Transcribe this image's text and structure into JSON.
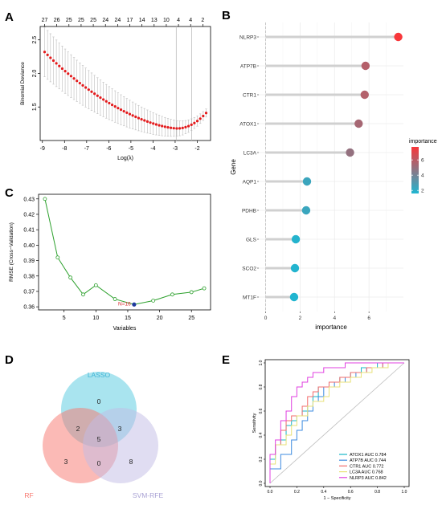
{
  "panels": {
    "A": "A",
    "B": "B",
    "C": "C",
    "D": "D",
    "E": "E"
  },
  "chart_data": [
    {
      "panel": "A",
      "type": "scatter",
      "xlabel": "Log(λ)",
      "ylabel": "Binomial Deviance",
      "xlim": [
        -9.1,
        -1.4
      ],
      "ylim": [
        1.0,
        2.7
      ],
      "xticks": [
        -9,
        -8,
        -7,
        -6,
        -5,
        -4,
        -3,
        -2
      ],
      "yticks": [
        1.5,
        2.0,
        2.5
      ],
      "ytick_labels": [
        "1.5",
        "2.0",
        "2.5"
      ],
      "top_axis_labels": [
        "27",
        "26",
        "25",
        "25",
        "25",
        "24",
        "24",
        "17",
        "14",
        "13",
        "10",
        "4",
        "4",
        "2"
      ],
      "top_axis_positions": [
        -8.9,
        -8.35,
        -7.8,
        -7.25,
        -6.7,
        -6.15,
        -5.6,
        -5.05,
        -4.5,
        -3.95,
        -3.4,
        -2.85,
        -2.3,
        -1.75
      ],
      "vlines": [
        -2.95,
        -2.25
      ],
      "curve": {
        "x_start": -8.9,
        "x_end": -1.6,
        "n": 56,
        "deviance_start": 2.32,
        "deviance_min": 1.18,
        "min_at": -2.9,
        "deviance_end": 1.41,
        "error_start": 0.37,
        "error_end": 0.06
      },
      "colors": {
        "point": "#e31a1c",
        "errorbar": "#bdbdbd",
        "vline": "#bdbdbd"
      }
    },
    {
      "panel": "B",
      "type": "scatter",
      "xlabel": "importance",
      "ylabel": "Gene",
      "xlim": [
        -0.4,
        8.0
      ],
      "xticks": [
        0,
        2,
        4,
        6
      ],
      "genes": [
        "NLRP3",
        "ATP7B",
        "CTR1",
        "ATOX1",
        "LC3A",
        "AQP1",
        "PDHB",
        "GLS",
        "SCO2",
        "MT1F"
      ],
      "importance": [
        7.7,
        5.8,
        5.75,
        5.4,
        4.9,
        2.4,
        2.35,
        1.75,
        1.7,
        1.65
      ],
      "legend": {
        "title": "importance",
        "ticks": [
          2,
          4,
          6
        ],
        "range": [
          1.6,
          7.7
        ],
        "color_low": "#1fb6d1",
        "color_high": "#f8373a"
      },
      "colors": {
        "stem": "#d0d0d0",
        "panel_bg": "#ffffff",
        "grid": "#ebebeb"
      }
    },
    {
      "panel": "C",
      "type": "line",
      "xlabel": "Variables",
      "ylabel": "RMSE (Cross−Validation)",
      "xlim": [
        1,
        28
      ],
      "ylim": [
        0.358,
        0.433
      ],
      "xticks": [
        5,
        10,
        15,
        20,
        25
      ],
      "yticks": [
        0.36,
        0.37,
        0.38,
        0.39,
        0.4,
        0.41,
        0.42,
        0.43
      ],
      "ytick_labels": [
        "0.36",
        "0.37",
        "0.38",
        "0.39",
        "0.40",
        "0.41",
        "0.42",
        "0.43"
      ],
      "x": [
        2,
        4,
        6,
        8,
        10,
        13,
        16,
        19,
        22,
        25,
        27
      ],
      "y": [
        0.43,
        0.392,
        0.379,
        0.368,
        0.374,
        0.365,
        0.3615,
        0.364,
        0.368,
        0.3695,
        0.372
      ],
      "best": {
        "x": 16,
        "y": 0.3615,
        "label": "N=16"
      },
      "colors": {
        "line": "#2ca02c",
        "point": "#2ca02c",
        "best": "#1f3a9e",
        "label": "#d62728"
      }
    },
    {
      "panel": "D",
      "type": "table",
      "kind": "venn",
      "sets": [
        {
          "name": "LASSO",
          "color": "#53c9e0",
          "label_color": "#3fb4d6"
        },
        {
          "name": "RF",
          "color": "#f8766d",
          "label_color": "#f8766d"
        },
        {
          "name": "SVM-RFE",
          "color": "#c2bce6",
          "label_color": "#a9a2d4"
        }
      ],
      "regions": {
        "lasso_only": "0",
        "rf_only": "3",
        "svm_only": "8",
        "lasso_rf": "2",
        "lasso_svm": "3",
        "rf_svm": "0",
        "all": "5"
      }
    },
    {
      "panel": "E",
      "type": "line",
      "xlabel": "1 − Specificity",
      "ylabel": "Sensitivity",
      "xlim": [
        0,
        1
      ],
      "ylim": [
        0,
        1
      ],
      "ticks": [
        0.0,
        0.2,
        0.4,
        0.6,
        0.8,
        1.0
      ],
      "tick_labels": [
        "0.0",
        "0.2",
        "0.4",
        "0.6",
        "0.8",
        "1.0"
      ],
      "series": [
        {
          "name": "ATOX1 AUC 0.784",
          "color": "#17b6c8",
          "x": [
            0,
            0,
            0.04,
            0.04,
            0.08,
            0.08,
            0.12,
            0.12,
            0.16,
            0.16,
            0.2,
            0.2,
            0.24,
            0.24,
            0.28,
            0.28,
            0.32,
            0.32,
            0.36,
            0.36,
            0.44,
            0.44,
            0.52,
            0.52,
            0.6,
            0.6,
            0.68,
            0.68,
            0.8,
            0.8,
            1.0
          ],
          "y": [
            0,
            0.2,
            0.2,
            0.32,
            0.32,
            0.36,
            0.36,
            0.48,
            0.48,
            0.52,
            0.52,
            0.56,
            0.56,
            0.6,
            0.6,
            0.64,
            0.64,
            0.72,
            0.72,
            0.8,
            0.8,
            0.84,
            0.84,
            0.88,
            0.88,
            0.92,
            0.92,
            0.96,
            0.96,
            1.0,
            1.0
          ]
        },
        {
          "name": "ATP7B AUC 0.744",
          "color": "#3d8be0",
          "x": [
            0,
            0,
            0.08,
            0.08,
            0.16,
            0.16,
            0.2,
            0.2,
            0.24,
            0.24,
            0.28,
            0.28,
            0.32,
            0.32,
            0.36,
            0.36,
            0.4,
            0.4,
            0.48,
            0.48,
            0.56,
            0.56,
            0.64,
            0.64,
            0.72,
            0.72,
            0.84,
            0.84,
            1.0
          ],
          "y": [
            0,
            0.12,
            0.12,
            0.24,
            0.24,
            0.36,
            0.36,
            0.44,
            0.44,
            0.52,
            0.52,
            0.6,
            0.6,
            0.68,
            0.68,
            0.72,
            0.72,
            0.8,
            0.8,
            0.84,
            0.84,
            0.88,
            0.88,
            0.92,
            0.92,
            0.96,
            0.96,
            1.0,
            1.0
          ]
        },
        {
          "name": "CTR1 AUC 0.772",
          "color": "#f26d6d",
          "x": [
            0,
            0,
            0.04,
            0.04,
            0.08,
            0.08,
            0.12,
            0.12,
            0.16,
            0.16,
            0.24,
            0.24,
            0.28,
            0.28,
            0.32,
            0.32,
            0.36,
            0.36,
            0.44,
            0.44,
            0.52,
            0.52,
            0.6,
            0.6,
            0.72,
            0.72,
            0.84,
            0.84,
            1.0
          ],
          "y": [
            0,
            0.24,
            0.24,
            0.32,
            0.32,
            0.44,
            0.44,
            0.52,
            0.52,
            0.56,
            0.56,
            0.64,
            0.64,
            0.72,
            0.72,
            0.76,
            0.76,
            0.8,
            0.8,
            0.84,
            0.84,
            0.88,
            0.88,
            0.92,
            0.92,
            0.96,
            0.96,
            1.0,
            1.0
          ]
        },
        {
          "name": "LC3A AUC 0.768",
          "color": "#e8e27a",
          "x": [
            0,
            0,
            0.04,
            0.04,
            0.12,
            0.12,
            0.16,
            0.16,
            0.2,
            0.2,
            0.28,
            0.28,
            0.32,
            0.32,
            0.4,
            0.4,
            0.44,
            0.44,
            0.52,
            0.52,
            0.6,
            0.6,
            0.68,
            0.68,
            0.76,
            0.76,
            0.88,
            0.88,
            1.0
          ],
          "y": [
            0,
            0.16,
            0.16,
            0.32,
            0.32,
            0.4,
            0.4,
            0.48,
            0.48,
            0.56,
            0.56,
            0.64,
            0.64,
            0.68,
            0.68,
            0.72,
            0.72,
            0.8,
            0.8,
            0.84,
            0.84,
            0.88,
            0.88,
            0.92,
            0.92,
            0.96,
            0.96,
            1.0,
            1.0
          ]
        },
        {
          "name": "NLRP3 AUC 0.842",
          "color": "#e040e0",
          "x": [
            0,
            0,
            0.04,
            0.04,
            0.08,
            0.08,
            0.12,
            0.12,
            0.16,
            0.16,
            0.2,
            0.2,
            0.24,
            0.24,
            0.28,
            0.28,
            0.32,
            0.32,
            0.4,
            0.4,
            0.48,
            0.48,
            0.56,
            0.56,
            0.64,
            0.64,
            0.76,
            0.76,
            1.0
          ],
          "y": [
            0,
            0.24,
            0.24,
            0.36,
            0.36,
            0.52,
            0.52,
            0.6,
            0.6,
            0.72,
            0.72,
            0.8,
            0.8,
            0.84,
            0.84,
            0.88,
            0.88,
            0.92,
            0.92,
            0.96,
            0.96,
            0.96,
            0.96,
            1.0,
            1.0,
            1.0,
            1.0,
            1.0,
            1.0
          ]
        }
      ],
      "diagonal_color": "#bdbdbd"
    }
  ]
}
